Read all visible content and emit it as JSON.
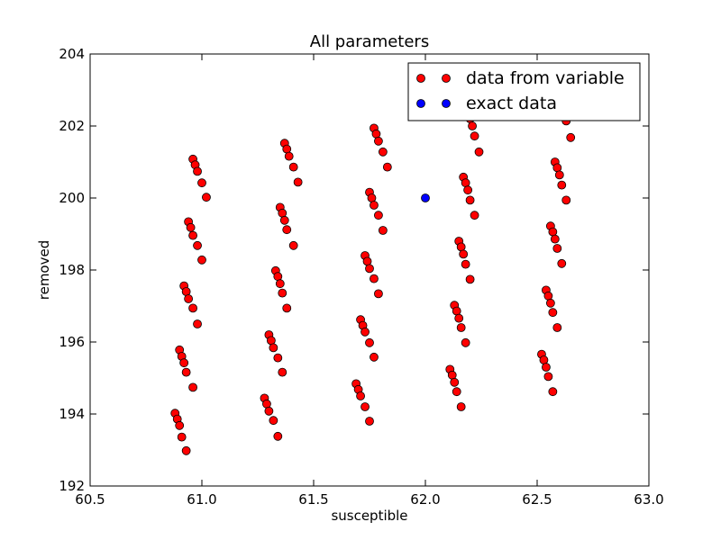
{
  "chart_data": {
    "type": "scatter",
    "title": "All parameters",
    "xlabel": "susceptible",
    "ylabel": "removed",
    "xlim": [
      60.5,
      63.0
    ],
    "ylim": [
      192,
      204
    ],
    "xticks": [
      60.5,
      61.0,
      61.5,
      62.0,
      62.5,
      63.0
    ],
    "xtick_labels": [
      "60.5",
      "61.0",
      "61.5",
      "62.0",
      "62.5",
      "63.0"
    ],
    "yticks": [
      192,
      194,
      196,
      198,
      200,
      202,
      204
    ],
    "ytick_labels": [
      "192",
      "194",
      "196",
      "198",
      "200",
      "202",
      "204"
    ],
    "grid": false,
    "legend_position": "top-right",
    "series": [
      {
        "name": "data from variable",
        "color": "#ff0000",
        "points": [
          [
            60.88,
            194.02
          ],
          [
            60.89,
            193.86
          ],
          [
            60.9,
            193.68
          ],
          [
            60.91,
            193.36
          ],
          [
            60.93,
            192.98
          ],
          [
            60.9,
            195.78
          ],
          [
            60.91,
            195.6
          ],
          [
            60.92,
            195.42
          ],
          [
            60.93,
            195.16
          ],
          [
            60.96,
            194.74
          ],
          [
            60.92,
            197.56
          ],
          [
            60.93,
            197.4
          ],
          [
            60.94,
            197.2
          ],
          [
            60.96,
            196.94
          ],
          [
            60.98,
            196.5
          ],
          [
            60.94,
            199.34
          ],
          [
            60.95,
            199.18
          ],
          [
            60.96,
            198.96
          ],
          [
            60.98,
            198.68
          ],
          [
            61.0,
            198.28
          ],
          [
            60.96,
            201.08
          ],
          [
            60.97,
            200.92
          ],
          [
            60.98,
            200.74
          ],
          [
            61.0,
            200.42
          ],
          [
            61.02,
            200.02
          ],
          [
            61.28,
            194.44
          ],
          [
            61.29,
            194.28
          ],
          [
            61.3,
            194.08
          ],
          [
            61.32,
            193.82
          ],
          [
            61.34,
            193.38
          ],
          [
            61.3,
            196.2
          ],
          [
            61.31,
            196.04
          ],
          [
            61.32,
            195.84
          ],
          [
            61.34,
            195.56
          ],
          [
            61.36,
            195.16
          ],
          [
            61.33,
            197.98
          ],
          [
            61.34,
            197.82
          ],
          [
            61.35,
            197.62
          ],
          [
            61.36,
            197.36
          ],
          [
            61.38,
            196.94
          ],
          [
            61.35,
            199.74
          ],
          [
            61.36,
            199.58
          ],
          [
            61.37,
            199.38
          ],
          [
            61.38,
            199.12
          ],
          [
            61.41,
            198.68
          ],
          [
            61.37,
            201.52
          ],
          [
            61.38,
            201.36
          ],
          [
            61.39,
            201.16
          ],
          [
            61.41,
            200.86
          ],
          [
            61.43,
            200.44
          ],
          [
            61.69,
            194.84
          ],
          [
            61.7,
            194.68
          ],
          [
            61.71,
            194.5
          ],
          [
            61.73,
            194.2
          ],
          [
            61.75,
            193.8
          ],
          [
            61.71,
            196.62
          ],
          [
            61.72,
            196.46
          ],
          [
            61.73,
            196.28
          ],
          [
            61.75,
            195.98
          ],
          [
            61.77,
            195.58
          ],
          [
            61.73,
            198.4
          ],
          [
            61.74,
            198.24
          ],
          [
            61.75,
            198.04
          ],
          [
            61.77,
            197.76
          ],
          [
            61.79,
            197.34
          ],
          [
            61.75,
            200.16
          ],
          [
            61.76,
            200.0
          ],
          [
            61.77,
            199.8
          ],
          [
            61.79,
            199.52
          ],
          [
            61.81,
            199.1
          ],
          [
            61.77,
            201.94
          ],
          [
            61.78,
            201.78
          ],
          [
            61.79,
            201.58
          ],
          [
            61.81,
            201.28
          ],
          [
            61.83,
            200.86
          ],
          [
            62.11,
            195.24
          ],
          [
            62.12,
            195.08
          ],
          [
            62.13,
            194.88
          ],
          [
            62.14,
            194.62
          ],
          [
            62.16,
            194.2
          ],
          [
            62.13,
            197.02
          ],
          [
            62.14,
            196.86
          ],
          [
            62.15,
            196.66
          ],
          [
            62.16,
            196.4
          ],
          [
            62.18,
            195.98
          ],
          [
            62.15,
            198.8
          ],
          [
            62.16,
            198.64
          ],
          [
            62.17,
            198.44
          ],
          [
            62.18,
            198.16
          ],
          [
            62.2,
            197.74
          ],
          [
            62.17,
            200.58
          ],
          [
            62.18,
            200.42
          ],
          [
            62.19,
            200.22
          ],
          [
            62.2,
            199.94
          ],
          [
            62.22,
            199.52
          ],
          [
            62.19,
            202.36
          ],
          [
            62.2,
            202.2
          ],
          [
            62.21,
            202.0
          ],
          [
            62.22,
            201.72
          ],
          [
            62.24,
            201.28
          ],
          [
            62.52,
            195.66
          ],
          [
            62.53,
            195.5
          ],
          [
            62.54,
            195.3
          ],
          [
            62.55,
            195.04
          ],
          [
            62.57,
            194.62
          ],
          [
            62.54,
            197.44
          ],
          [
            62.55,
            197.28
          ],
          [
            62.56,
            197.08
          ],
          [
            62.57,
            196.82
          ],
          [
            62.59,
            196.4
          ],
          [
            62.56,
            199.22
          ],
          [
            62.57,
            199.06
          ],
          [
            62.58,
            198.86
          ],
          [
            62.59,
            198.6
          ],
          [
            62.61,
            198.18
          ],
          [
            62.58,
            201.0
          ],
          [
            62.59,
            200.84
          ],
          [
            62.6,
            200.64
          ],
          [
            62.61,
            200.36
          ],
          [
            62.63,
            199.94
          ],
          [
            62.6,
            202.78
          ],
          [
            62.61,
            202.62
          ],
          [
            62.62,
            202.42
          ],
          [
            62.63,
            202.14
          ],
          [
            62.65,
            201.68
          ]
        ]
      },
      {
        "name": "exact data",
        "color": "#0000ff",
        "points": [
          [
            62.0,
            200.0
          ]
        ]
      }
    ]
  }
}
